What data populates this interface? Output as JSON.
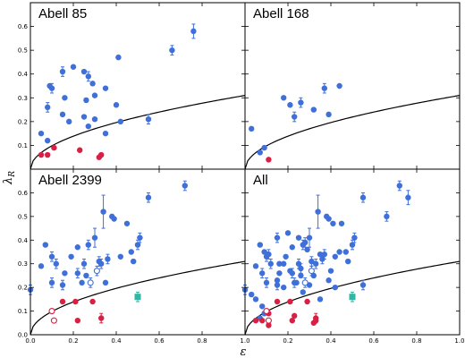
{
  "colors": {
    "fast_rotator": "#3f6fd8",
    "slow_rotator": "#d81f44",
    "bcg": "#33b5a5",
    "axis": "#000000"
  },
  "axes": {
    "xlabel": "ε",
    "ylabel_main": "λ",
    "ylabel_sub": "R",
    "xlim": [
      0,
      1
    ],
    "ylim": [
      0,
      0.7
    ],
    "xticks_bottom": [
      "0.0",
      "0.2",
      "0.4",
      "0.6",
      "0.8",
      "1.0"
    ],
    "xticks_bottom_right": [
      "",
      "0.2",
      "0.4",
      "0.6",
      "0.8",
      "1.0"
    ],
    "yticks_left": [
      "0.0",
      "0.1",
      "0.2",
      "0.3",
      "0.4",
      "0.5",
      "0.6"
    ],
    "yticks_left_top": [
      "0.1",
      "0.2",
      "0.3",
      "0.4",
      "0.5",
      "0.6"
    ]
  },
  "chart_data": [
    {
      "type": "scatter",
      "title": "Abell 85",
      "curve": "λR = 0.31·√ε",
      "series": [
        {
          "name": "fast",
          "marker": "filled-circle",
          "color": "fast_rotator",
          "points": [
            [
              0.05,
              0.15
            ],
            [
              0.08,
              0.12
            ],
            [
              0.08,
              0.26
            ],
            [
              0.09,
              0.35
            ],
            [
              0.1,
              0.34
            ],
            [
              0.15,
              0.23
            ],
            [
              0.15,
              0.41
            ],
            [
              0.16,
              0.3
            ],
            [
              0.18,
              0.2
            ],
            [
              0.2,
              0.43
            ],
            [
              0.25,
              0.41
            ],
            [
              0.25,
              0.22
            ],
            [
              0.26,
              0.29
            ],
            [
              0.27,
              0.18
            ],
            [
              0.27,
              0.39
            ],
            [
              0.29,
              0.36
            ],
            [
              0.3,
              0.21
            ],
            [
              0.3,
              0.31
            ],
            [
              0.35,
              0.34
            ],
            [
              0.35,
              0.15
            ],
            [
              0.4,
              0.27
            ],
            [
              0.41,
              0.47
            ],
            [
              0.42,
              0.2
            ],
            [
              0.55,
              0.21
            ],
            [
              0.66,
              0.5
            ],
            [
              0.76,
              0.58
            ]
          ],
          "err": [
            0,
            0,
            0.02,
            0,
            0.02,
            0,
            0.02,
            0,
            0,
            0,
            0,
            0,
            0,
            0,
            0.02,
            0,
            0,
            0,
            0,
            0,
            0,
            0,
            0,
            0.02,
            0.02,
            0.03
          ]
        },
        {
          "name": "slow",
          "marker": "filled-circle",
          "color": "slow_rotator",
          "points": [
            [
              0.05,
              0.06
            ],
            [
              0.08,
              0.06
            ],
            [
              0.11,
              0.09
            ],
            [
              0.23,
              0.08
            ],
            [
              0.32,
              0.05
            ],
            [
              0.33,
              0.06
            ]
          ]
        }
      ]
    },
    {
      "type": "scatter",
      "title": "Abell 168",
      "curve": "λR = 0.31·√ε",
      "series": [
        {
          "name": "fast",
          "marker": "filled-circle",
          "color": "fast_rotator",
          "points": [
            [
              0.03,
              0.17
            ],
            [
              0.07,
              0.07
            ],
            [
              0.09,
              0.09
            ],
            [
              0.18,
              0.3
            ],
            [
              0.21,
              0.27
            ],
            [
              0.23,
              0.22
            ],
            [
              0.26,
              0.28
            ],
            [
              0.32,
              0.25
            ],
            [
              0.37,
              0.34
            ],
            [
              0.39,
              0.23
            ],
            [
              0.44,
              0.35
            ]
          ],
          "err": [
            0,
            0,
            0,
            0,
            0,
            0.02,
            0.02,
            0,
            0.02,
            0,
            0
          ]
        },
        {
          "name": "slow",
          "marker": "filled-circle",
          "color": "slow_rotator",
          "points": [
            [
              0.11,
              0.04
            ]
          ]
        }
      ]
    },
    {
      "type": "scatter",
      "title": "Abell 2399",
      "curve": "λR = 0.31·√ε",
      "series": [
        {
          "name": "fast",
          "marker": "filled-circle",
          "color": "fast_rotator",
          "points": [
            [
              0.0,
              0.19
            ],
            [
              0.05,
              0.29
            ],
            [
              0.07,
              0.38
            ],
            [
              0.1,
              0.33
            ],
            [
              0.1,
              0.22
            ],
            [
              0.12,
              0.3
            ],
            [
              0.15,
              0.21
            ],
            [
              0.16,
              0.26
            ],
            [
              0.19,
              0.33
            ],
            [
              0.22,
              0.37
            ],
            [
              0.22,
              0.26
            ],
            [
              0.24,
              0.22
            ],
            [
              0.25,
              0.3
            ],
            [
              0.26,
              0.25
            ],
            [
              0.27,
              0.38
            ],
            [
              0.3,
              0.41
            ],
            [
              0.32,
              0.31
            ],
            [
              0.33,
              0.3
            ],
            [
              0.34,
              0.52
            ],
            [
              0.35,
              0.22
            ],
            [
              0.36,
              0.32
            ],
            [
              0.38,
              0.5
            ],
            [
              0.39,
              0.49
            ],
            [
              0.42,
              0.33
            ],
            [
              0.45,
              0.47
            ],
            [
              0.47,
              0.35
            ],
            [
              0.48,
              0.31
            ],
            [
              0.5,
              0.38
            ],
            [
              0.51,
              0.41
            ],
            [
              0.55,
              0.58
            ],
            [
              0.72,
              0.63
            ]
          ],
          "err": [
            0.02,
            0,
            0,
            0.02,
            0.02,
            0.02,
            0.02,
            0,
            0,
            0,
            0.02,
            0,
            0.02,
            0,
            0.02,
            0.04,
            0.02,
            0.02,
            0.07,
            0,
            0.02,
            0,
            0,
            0,
            0,
            0,
            0,
            0.02,
            0.02,
            0.02,
            0.02
          ]
        },
        {
          "name": "fast-open",
          "marker": "open-circle",
          "color": "fast_rotator",
          "points": [
            [
              0.28,
              0.22
            ],
            [
              0.31,
              0.27
            ]
          ],
          "err": [
            0.02,
            0.02
          ]
        },
        {
          "name": "slow",
          "marker": "filled-circle",
          "color": "slow_rotator",
          "points": [
            [
              0.15,
              0.14
            ],
            [
              0.21,
              0.14
            ],
            [
              0.22,
              0.06
            ],
            [
              0.29,
              0.14
            ],
            [
              0.33,
              0.07
            ]
          ],
          "err": [
            0,
            0,
            0,
            0,
            0.02
          ]
        },
        {
          "name": "slow-open",
          "marker": "open-circle",
          "color": "slow_rotator",
          "points": [
            [
              0.1,
              0.1
            ],
            [
              0.11,
              0.06
            ]
          ]
        },
        {
          "name": "bcg",
          "marker": "square",
          "color": "bcg",
          "points": [
            [
              0.5,
              0.16
            ]
          ],
          "err": [
            0.02
          ]
        }
      ]
    },
    {
      "type": "scatter",
      "title": "All",
      "curve": "λR = 0.31·√ε",
      "series": [
        {
          "name": "fast",
          "marker": "filled-circle",
          "color": "fast_rotator",
          "points": [
            [
              0.0,
              0.19
            ],
            [
              0.03,
              0.17
            ],
            [
              0.05,
              0.29
            ],
            [
              0.05,
              0.15
            ],
            [
              0.07,
              0.38
            ],
            [
              0.07,
              0.07
            ],
            [
              0.08,
              0.12
            ],
            [
              0.08,
              0.26
            ],
            [
              0.09,
              0.35
            ],
            [
              0.09,
              0.09
            ],
            [
              0.1,
              0.33
            ],
            [
              0.1,
              0.22
            ],
            [
              0.11,
              0.34
            ],
            [
              0.12,
              0.3
            ],
            [
              0.15,
              0.41
            ],
            [
              0.15,
              0.21
            ],
            [
              0.15,
              0.23
            ],
            [
              0.16,
              0.3
            ],
            [
              0.16,
              0.26
            ],
            [
              0.18,
              0.2
            ],
            [
              0.18,
              0.3
            ],
            [
              0.19,
              0.33
            ],
            [
              0.2,
              0.43
            ],
            [
              0.21,
              0.27
            ],
            [
              0.22,
              0.37
            ],
            [
              0.22,
              0.26
            ],
            [
              0.23,
              0.22
            ],
            [
              0.24,
              0.22
            ],
            [
              0.25,
              0.41
            ],
            [
              0.25,
              0.3
            ],
            [
              0.26,
              0.28
            ],
            [
              0.26,
              0.25
            ],
            [
              0.27,
              0.18
            ],
            [
              0.27,
              0.38
            ],
            [
              0.28,
              0.39
            ],
            [
              0.29,
              0.36
            ],
            [
              0.3,
              0.41
            ],
            [
              0.3,
              0.21
            ],
            [
              0.31,
              0.31
            ],
            [
              0.32,
              0.25
            ],
            [
              0.33,
              0.3
            ],
            [
              0.34,
              0.52
            ],
            [
              0.35,
              0.34
            ],
            [
              0.35,
              0.15
            ],
            [
              0.36,
              0.32
            ],
            [
              0.37,
              0.34
            ],
            [
              0.38,
              0.5
            ],
            [
              0.39,
              0.49
            ],
            [
              0.39,
              0.23
            ],
            [
              0.4,
              0.27
            ],
            [
              0.41,
              0.47
            ],
            [
              0.42,
              0.2
            ],
            [
              0.42,
              0.33
            ],
            [
              0.44,
              0.35
            ],
            [
              0.45,
              0.47
            ],
            [
              0.47,
              0.35
            ],
            [
              0.48,
              0.31
            ],
            [
              0.5,
              0.38
            ],
            [
              0.51,
              0.41
            ],
            [
              0.55,
              0.58
            ],
            [
              0.55,
              0.21
            ],
            [
              0.66,
              0.5
            ],
            [
              0.72,
              0.63
            ],
            [
              0.76,
              0.58
            ]
          ],
          "err": [
            0.02,
            0,
            0,
            0,
            0,
            0,
            0,
            0.02,
            0,
            0,
            0.02,
            0.02,
            0.02,
            0.02,
            0.02,
            0.02,
            0,
            0,
            0,
            0,
            0,
            0,
            0,
            0,
            0,
            0.02,
            0.02,
            0,
            0,
            0.02,
            0.02,
            0,
            0,
            0.02,
            0.02,
            0,
            0.04,
            0,
            0.02,
            0,
            0.02,
            0.07,
            0,
            0,
            0.02,
            0.02,
            0,
            0,
            0,
            0,
            0,
            0,
            0,
            0,
            0,
            0,
            0,
            0.02,
            0.02,
            0.02,
            0.02,
            0.02,
            0.02,
            0.03
          ]
        },
        {
          "name": "fast-open",
          "marker": "open-circle",
          "color": "fast_rotator",
          "points": [
            [
              0.28,
              0.22
            ],
            [
              0.31,
              0.27
            ]
          ],
          "err": [
            0.02,
            0.02
          ]
        },
        {
          "name": "slow",
          "marker": "filled-circle",
          "color": "slow_rotator",
          "points": [
            [
              0.05,
              0.06
            ],
            [
              0.08,
              0.06
            ],
            [
              0.11,
              0.04
            ],
            [
              0.11,
              0.09
            ],
            [
              0.15,
              0.14
            ],
            [
              0.21,
              0.14
            ],
            [
              0.22,
              0.06
            ],
            [
              0.23,
              0.08
            ],
            [
              0.29,
              0.14
            ],
            [
              0.32,
              0.05
            ],
            [
              0.33,
              0.07
            ],
            [
              0.33,
              0.06
            ]
          ],
          "err": [
            0,
            0,
            0,
            0,
            0,
            0,
            0,
            0,
            0,
            0,
            0.02,
            0
          ]
        },
        {
          "name": "slow-open",
          "marker": "open-circle",
          "color": "slow_rotator",
          "points": [
            [
              0.1,
              0.1
            ],
            [
              0.11,
              0.06
            ]
          ]
        },
        {
          "name": "bcg",
          "marker": "square",
          "color": "bcg",
          "points": [
            [
              0.5,
              0.16
            ]
          ],
          "err": [
            0.02
          ]
        }
      ]
    }
  ]
}
